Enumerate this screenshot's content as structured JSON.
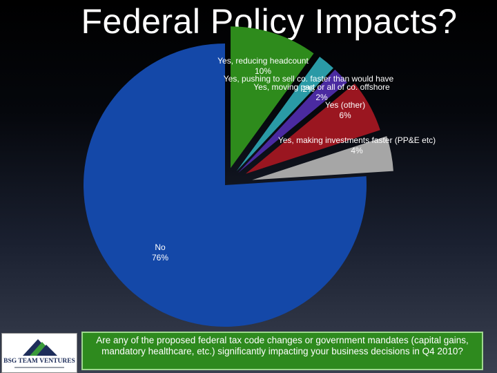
{
  "slide": {
    "title": "Federal Policy Impacts?",
    "question": "Are any of the proposed federal tax code changes or government mandates (capital gains, mandatory healthcare, etc.) significantly impacting your business decisions in Q4 2010?",
    "logo_text": "BSG TEAM VENTURES"
  },
  "chart_data": {
    "type": "pie",
    "title": "Federal Policy Impacts?",
    "slices": [
      {
        "label": "Yes, reducing headcount",
        "value": 10,
        "value_label": "10%",
        "color": "#2e8b1c"
      },
      {
        "label": "Yes, pushing to sell co. faster than would have",
        "value": 2,
        "value_label": "2%",
        "color": "#2a9aa6"
      },
      {
        "label": "Yes, moving part or all of co. offshore",
        "value": 2,
        "value_label": "2%",
        "color": "#4a2aa0"
      },
      {
        "label": "Yes (other)",
        "value": 6,
        "value_label": "6%",
        "color": "#9a1620"
      },
      {
        "label": "Yes, making investments faster (PP&E etc)",
        "value": 4,
        "value_label": "4%",
        "color": "#a6a6a6"
      },
      {
        "label": "No",
        "value": 76,
        "value_label": "76%",
        "color": "#1448a8"
      }
    ]
  }
}
